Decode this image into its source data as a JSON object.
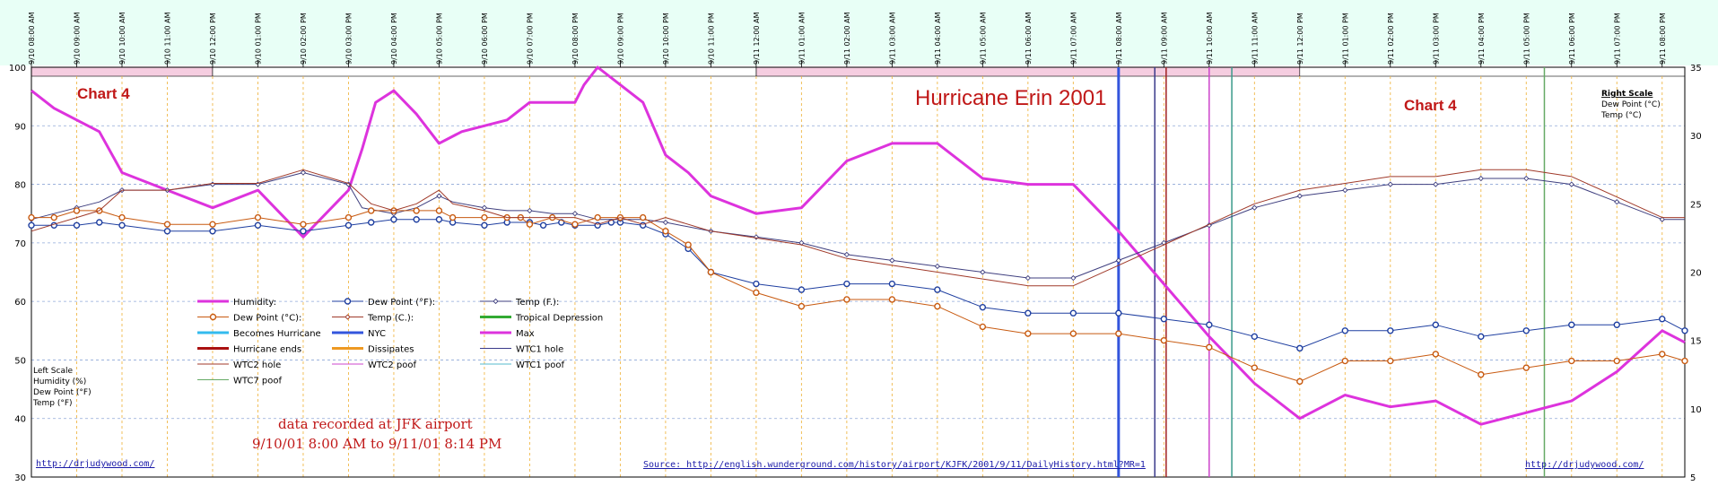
{
  "chart_data": {
    "type": "line",
    "title": "Hurricane Erin 2001",
    "chart_labels": [
      "Chart 4",
      "Chart 4"
    ],
    "note_lines": [
      "data recorded at JFK airport",
      "9/10/01 8:00 AM to 9/11/01 8:14 PM"
    ],
    "source_link": "Source: http://english.wunderground.com/history/airport/KJFK/2001/9/11/DailyHistory.html?MR=1",
    "site_link": "http://drjudywood.com/",
    "left_scale_labels": [
      "Left Scale",
      "Humidity (%)",
      "Dew Point (°F)",
      "Temp (°F)"
    ],
    "right_scale_labels": [
      "Right Scale",
      "Dew Point (°C)",
      "Temp (°C)"
    ],
    "y_left": {
      "min": 30,
      "max": 100,
      "ticks": [
        30,
        40,
        50,
        60,
        70,
        80,
        90,
        100
      ]
    },
    "y_right": {
      "min": 5,
      "max": 35,
      "ticks": [
        5,
        10,
        15,
        20,
        25,
        30,
        35
      ]
    },
    "x_hours_range": [
      0,
      36.5
    ],
    "x_tick_labels": [
      "9/10 08:00 AM",
      "9/10 09:00 AM",
      "9/10 10:00 AM",
      "9/10 11:00 AM",
      "9/10 12:00 PM",
      "9/10 01:00 PM",
      "9/10 02:00 PM",
      "9/10 03:00 PM",
      "9/10 04:00 PM",
      "9/10 05:00 PM",
      "9/10 06:00 PM",
      "9/10 07:00 PM",
      "9/10 08:00 PM",
      "9/10 09:00 PM",
      "9/10 10:00 PM",
      "9/10 11:00 PM",
      "9/11 12:00 AM",
      "9/11 01:00 AM",
      "9/11 02:00 AM",
      "9/11 03:00 AM",
      "9/11 04:00 AM",
      "9/11 05:00 AM",
      "9/11 06:00 AM",
      "9/11 07:00 AM",
      "9/11 08:00 AM",
      "9/11 09:00 AM",
      "9/11 10:00 AM",
      "9/11 11:00 AM",
      "9/11 12:00 PM",
      "9/11 01:00 PM",
      "9/11 02:00 PM",
      "9/11 03:00 PM",
      "9/11 04:00 PM",
      "9/11 05:00 PM",
      "9/11 06:00 PM",
      "9/11 07:00 PM",
      "9/11 08:00 PM"
    ],
    "night_bands": [
      [
        0,
        4
      ],
      [
        16,
        28
      ]
    ],
    "day_bands": [
      [
        4,
        16
      ],
      [
        28,
        36.5
      ]
    ],
    "series": [
      {
        "name": "Humidity:",
        "axis": "left",
        "color": "#dd33dd",
        "width": 3,
        "marker": "none",
        "x": [
          0,
          0.5,
          1,
          1.5,
          2,
          3,
          4,
          5,
          5.5,
          6,
          7,
          7.3,
          7.6,
          8,
          8.5,
          9,
          9.5,
          10,
          10.5,
          11,
          12,
          12.2,
          12.5,
          13,
          13.5,
          14,
          14.5,
          15,
          16,
          17,
          18,
          19,
          20,
          21,
          22,
          23,
          24,
          25,
          26,
          27,
          28,
          29,
          30,
          31,
          32,
          33,
          34,
          35,
          36,
          36.5
        ],
        "y": [
          96,
          93,
          91,
          89,
          82,
          79,
          76,
          79,
          75,
          71,
          79,
          86,
          94,
          96,
          92,
          87,
          89,
          90,
          91,
          94,
          94,
          97,
          100,
          97,
          94,
          85,
          82,
          78,
          75,
          76,
          84,
          87,
          87,
          81,
          80,
          80,
          72,
          63,
          54,
          46,
          40,
          44,
          42,
          43,
          39,
          41,
          43,
          48,
          55,
          53
        ]
      },
      {
        "name": "Dew Point (°F):",
        "axis": "left",
        "color": "#1f3fa0",
        "width": 1,
        "marker": "circle-blue",
        "x": [
          0,
          0.5,
          1,
          1.5,
          2,
          3,
          4,
          5,
          6,
          7,
          7.5,
          8,
          8.5,
          9,
          9.3,
          10,
          10.5,
          11,
          11.3,
          11.7,
          12,
          12.5,
          12.8,
          13,
          13.5,
          14,
          14.5,
          15,
          16,
          17,
          18,
          19,
          20,
          21,
          22,
          23,
          24,
          25,
          26,
          27,
          28,
          29,
          30,
          31,
          32,
          33,
          34,
          35,
          36,
          36.5
        ],
        "y": [
          73,
          73,
          73,
          73.5,
          73,
          72,
          72,
          73,
          72,
          73,
          73.5,
          74,
          74,
          74,
          73.5,
          73,
          73.5,
          73.5,
          73,
          73.5,
          73,
          73,
          73.5,
          73.5,
          73,
          71.5,
          69,
          65,
          63,
          62,
          63,
          63,
          62,
          59,
          58,
          58,
          58,
          57,
          56,
          54,
          52,
          55,
          55,
          56,
          54,
          55,
          56,
          56,
          57,
          55
        ]
      },
      {
        "name": "Temp (F.):",
        "axis": "left",
        "color": "#3f3f7f",
        "width": 1,
        "marker": "diamond",
        "x": [
          0,
          0.5,
          1,
          1.5,
          2,
          3,
          4,
          5,
          6,
          7,
          7.3,
          8,
          8.5,
          9,
          9.3,
          10,
          10.5,
          11,
          11.5,
          12,
          12.5,
          13,
          13.5,
          14,
          15,
          16,
          17,
          18,
          19,
          20,
          21,
          22,
          23,
          24,
          25,
          26,
          27,
          28,
          29,
          30,
          31,
          32,
          33,
          34,
          35,
          36,
          36.5
        ],
        "y": [
          74,
          75,
          76,
          77,
          79,
          79,
          80,
          80,
          82,
          80,
          76,
          75,
          76,
          78,
          77,
          76,
          75.5,
          75.5,
          75,
          75,
          74,
          74,
          74,
          73.5,
          72,
          71,
          70,
          68,
          67,
          66,
          65,
          64,
          64,
          67,
          70,
          73,
          76,
          78,
          79,
          80,
          80,
          81,
          81,
          80,
          77,
          74,
          74
        ]
      },
      {
        "name": "Dew Point (°C):",
        "axis": "right",
        "color": "#c85a10",
        "width": 1,
        "marker": "circle-orange",
        "x": [
          0,
          0.5,
          1,
          1.5,
          2,
          3,
          4,
          5,
          6,
          7,
          7.5,
          8,
          8.5,
          9,
          9.3,
          10,
          10.5,
          10.8,
          11,
          11.5,
          12,
          12.5,
          13,
          13.5,
          14,
          14.5,
          15,
          16,
          17,
          18,
          19,
          20,
          21,
          22,
          23,
          24,
          25,
          26,
          27,
          28,
          29,
          30,
          31,
          32,
          33,
          34,
          35,
          36,
          36.5
        ],
        "y": [
          24,
          24,
          24.5,
          24.5,
          24,
          23.5,
          23.5,
          24,
          23.5,
          24,
          24.5,
          24.5,
          24.5,
          24.5,
          24,
          24,
          24,
          24,
          23.5,
          24,
          23.5,
          24,
          24,
          24,
          23,
          22,
          20,
          18.5,
          17.5,
          18,
          18,
          17.5,
          16,
          15.5,
          15.5,
          15.5,
          15,
          14.5,
          13,
          12,
          13.5,
          13.5,
          14,
          12.5,
          13,
          13.5,
          13.5,
          14,
          13.5
        ]
      },
      {
        "name": "Temp (C.):",
        "axis": "right",
        "color": "#a03a2a",
        "width": 1,
        "marker": "none",
        "x": [
          0,
          0.5,
          1,
          1.5,
          2,
          3,
          4,
          5,
          6,
          7,
          7.5,
          8,
          8.5,
          9,
          9.3,
          10,
          10.5,
          11,
          11.5,
          12,
          12.5,
          13,
          13.5,
          14,
          15,
          16,
          17,
          18,
          19,
          20,
          21,
          22,
          23,
          24,
          25,
          26,
          27,
          28,
          29,
          30,
          31,
          32,
          33,
          34,
          35,
          36,
          36.5
        ],
        "y": [
          23,
          23.5,
          24,
          24.5,
          26,
          26,
          26.5,
          26.5,
          27.5,
          26.5,
          25,
          24.5,
          25,
          26,
          25,
          24.5,
          24,
          24,
          24,
          24,
          23.5,
          24,
          23.5,
          24,
          23,
          22.5,
          22,
          21,
          20.5,
          20,
          19.5,
          19,
          19,
          20.5,
          22,
          23.5,
          25,
          26,
          26.5,
          27,
          27,
          27.5,
          27.5,
          27,
          25.5,
          24,
          24
        ]
      }
    ],
    "event_lines": [
      {
        "name": "NYC",
        "hour": 24.0,
        "color": "#3355dd",
        "width": 3
      },
      {
        "name": "WTC1 hole",
        "hour": 24.8,
        "color": "#3a3a8a",
        "width": 1.5
      },
      {
        "name": "WTC2 hole",
        "hour": 25.05,
        "color": "#a02020",
        "width": 1.5
      },
      {
        "name": "WTC2 poof",
        "hour": 26.0,
        "color": "#cc44cc",
        "width": 1.5
      },
      {
        "name": "WTC1 poof",
        "hour": 26.5,
        "color": "#3a9a8a",
        "width": 1.5
      },
      {
        "name": "WTC7 poof",
        "hour": 33.4,
        "color": "#66aa66",
        "width": 1.5
      }
    ],
    "legend": {
      "columns": [
        [
          {
            "label": "Humidity:",
            "color": "#dd33dd",
            "width": 3,
            "marker": "none"
          },
          {
            "label": "Dew Point (°C):",
            "color": "#c85a10",
            "width": 1,
            "marker": "circle-orange"
          },
          {
            "label": "Becomes Hurricane",
            "color": "#33bbee",
            "width": 3,
            "marker": "none"
          },
          {
            "label": "Hurricane ends",
            "color": "#aa1111",
            "width": 3,
            "marker": "none"
          },
          {
            "label": "WTC2 hole",
            "color": "#a03a2a",
            "width": 1,
            "marker": "none"
          },
          {
            "label": "WTC7 poof",
            "color": "#66aa66",
            "width": 1,
            "marker": "none"
          }
        ],
        [
          {
            "label": "Dew Point (°F):",
            "color": "#1f3fa0",
            "width": 1,
            "marker": "circle-blue"
          },
          {
            "label": "Temp (C.):",
            "color": "#a03a2a",
            "width": 1,
            "marker": "diamond"
          },
          {
            "label": "NYC",
            "color": "#3355dd",
            "width": 3,
            "marker": "none"
          },
          {
            "label": "Dissipates",
            "color": "#ee9922",
            "width": 3,
            "marker": "none"
          },
          {
            "label": "WTC2 poof",
            "color": "#cc44cc",
            "width": 1,
            "marker": "none"
          }
        ],
        [
          {
            "label": "Temp (F.):",
            "color": "#3f3f7f",
            "width": 1,
            "marker": "diamond"
          },
          {
            "label": "Tropical Depression",
            "color": "#33aa33",
            "width": 3,
            "marker": "none"
          },
          {
            "label": "Max",
            "color": "#dd33dd",
            "width": 3,
            "marker": "none"
          },
          {
            "label": "WTC1 hole",
            "color": "#3a3a8a",
            "width": 1,
            "marker": "none"
          },
          {
            "label": "WTC1 poof",
            "color": "#55bbcc",
            "width": 1,
            "marker": "none"
          }
        ]
      ]
    },
    "colors": {
      "header_bg": "#e8fff6",
      "night_band": "#f5cde0",
      "grid_h": "#8fa8d8",
      "grid_v": "#f0b848",
      "title": "#c01818",
      "note": "#c01818"
    }
  }
}
